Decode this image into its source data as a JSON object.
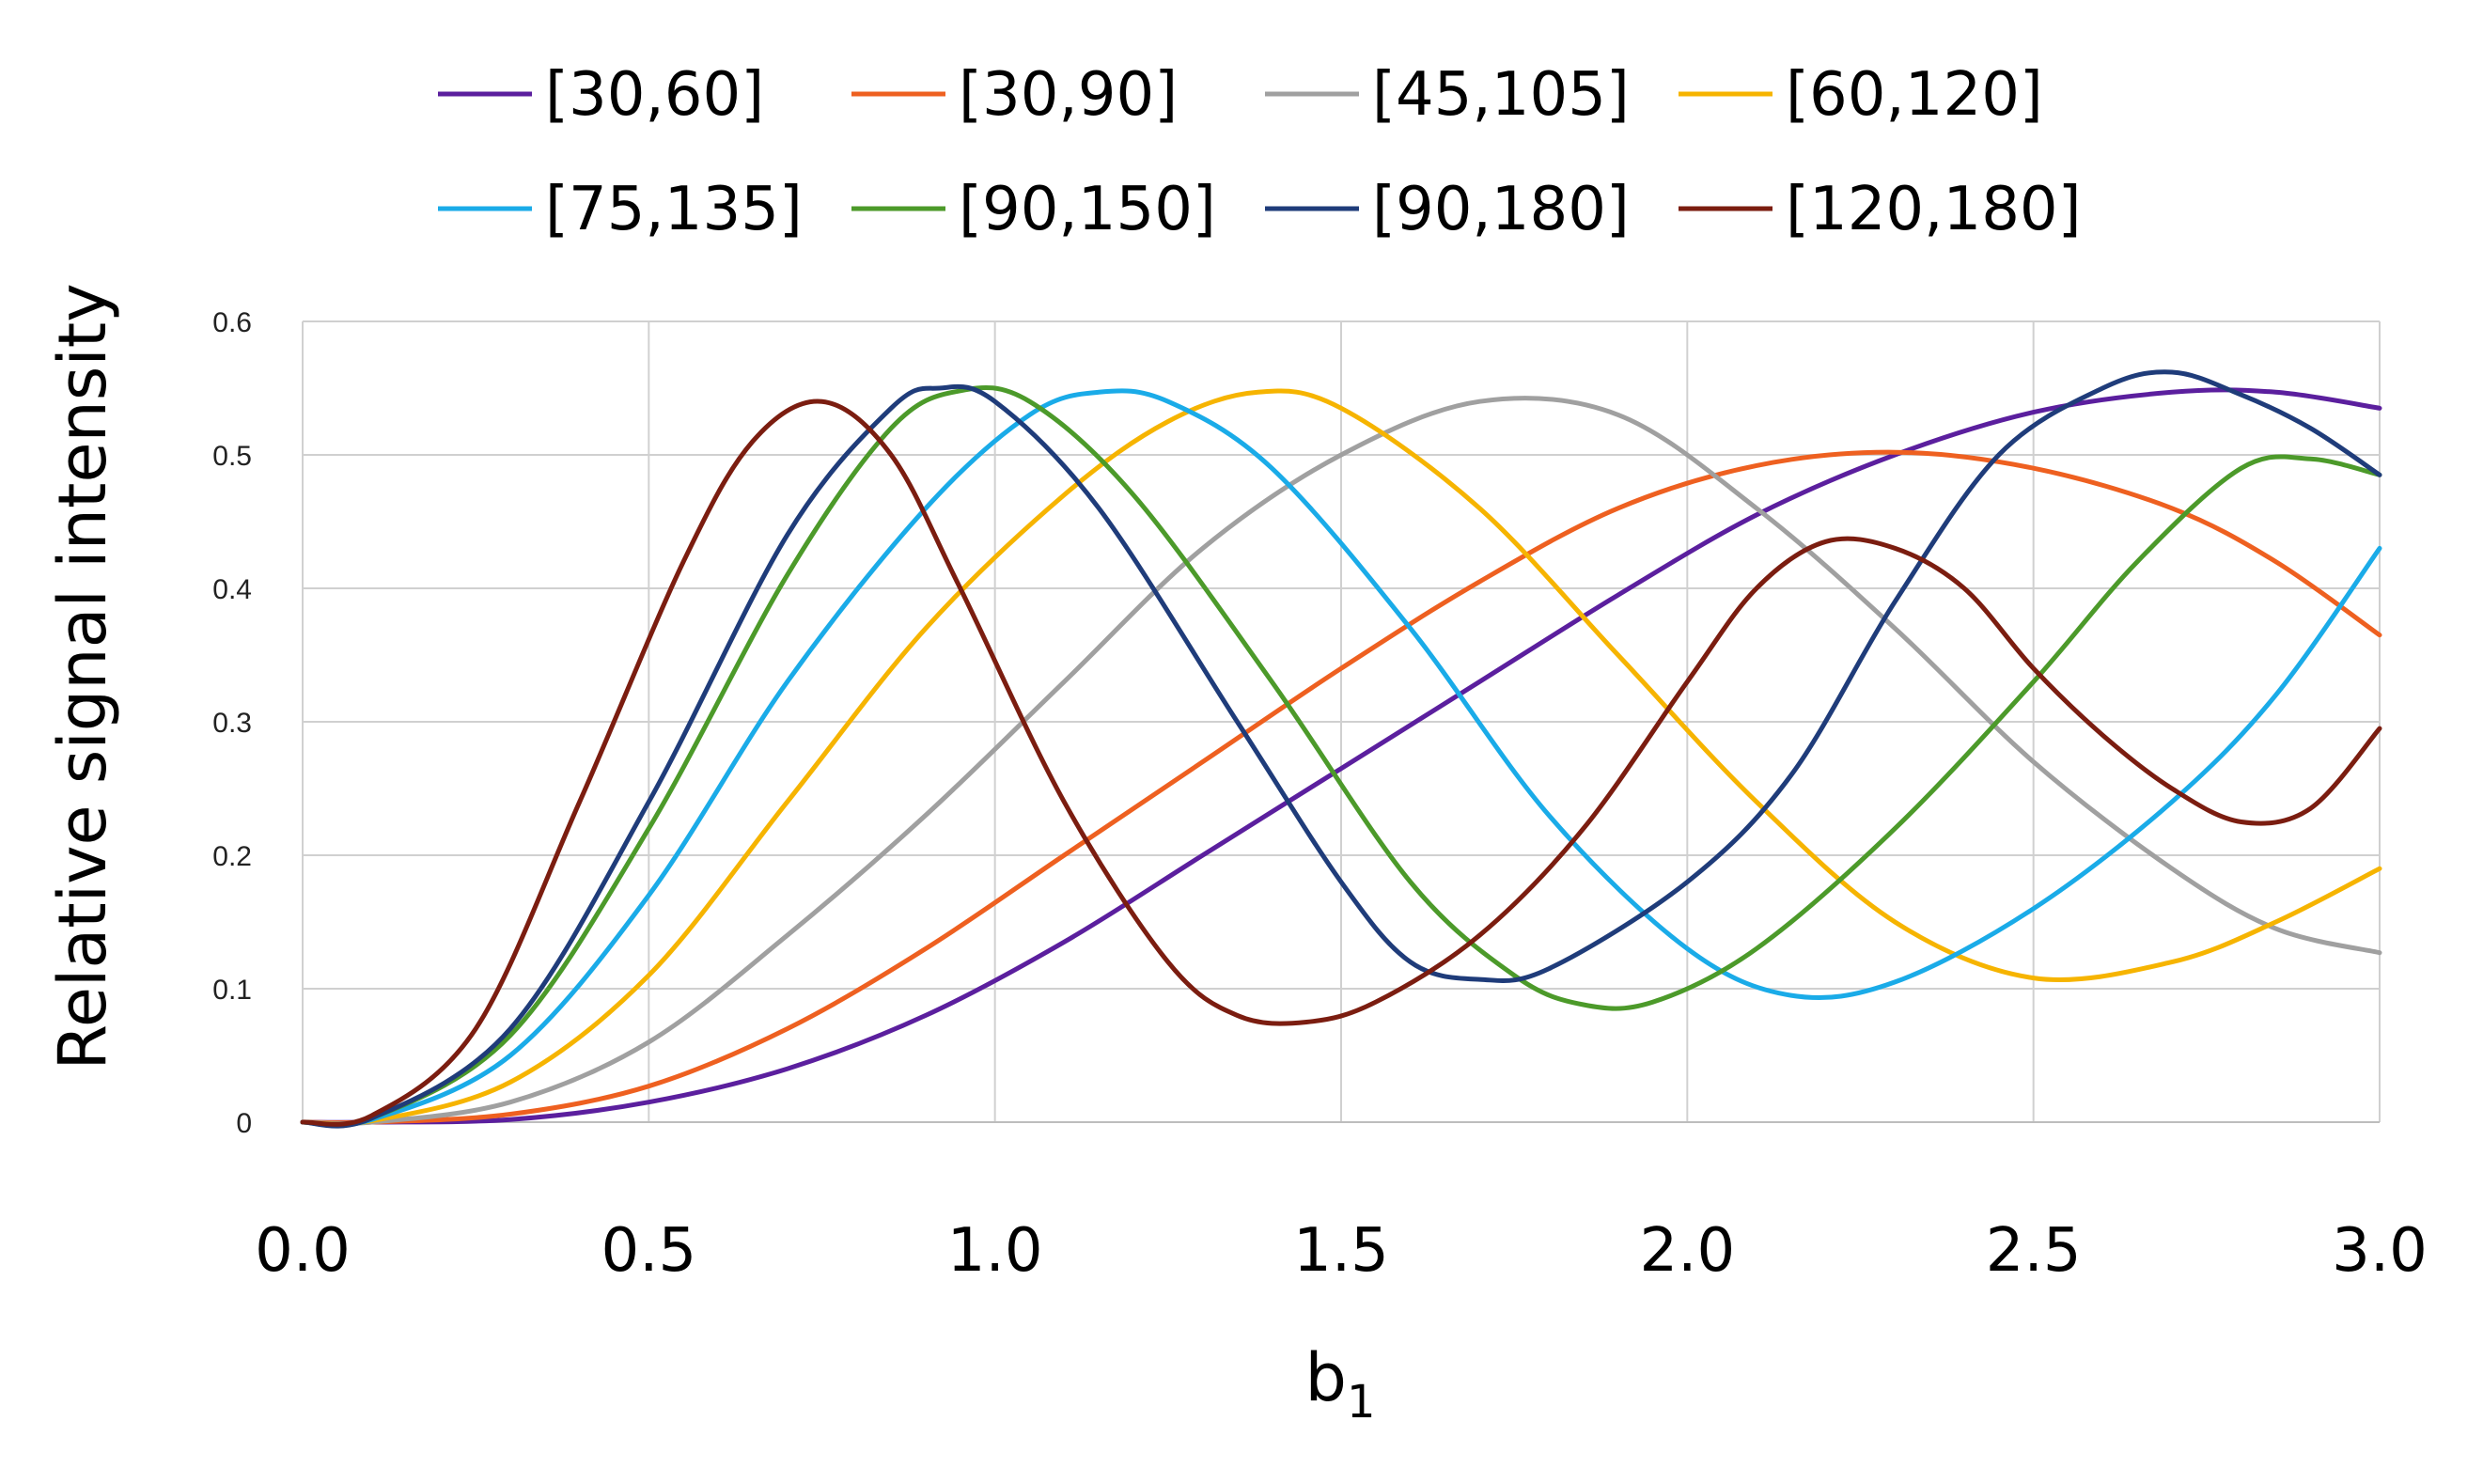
{
  "chart_data": {
    "type": "line",
    "xlabel": "b",
    "xlabel_subscript": "1",
    "ylabel": "Relative signal intensity",
    "xlim": [
      0,
      3
    ],
    "ylim": [
      0,
      0.6
    ],
    "x_ticks": [
      "0.0",
      "0.5",
      "1.0",
      "1.5",
      "2.0",
      "2.5",
      "3.0"
    ],
    "y_ticks": [
      "0",
      "0.1",
      "0.2",
      "0.3",
      "0.4",
      "0.5",
      "0.6"
    ],
    "grid": true,
    "legend_position": "top",
    "series": [
      {
        "name": "[30,60]",
        "color": "#5b1f9e",
        "points": [
          [
            0,
            0
          ],
          [
            0.1,
            0
          ],
          [
            0.3,
            0.002
          ],
          [
            0.5,
            0.015
          ],
          [
            0.7,
            0.04
          ],
          [
            0.9,
            0.08
          ],
          [
            1.1,
            0.135
          ],
          [
            1.3,
            0.2
          ],
          [
            1.5,
            0.265
          ],
          [
            1.7,
            0.33
          ],
          [
            1.9,
            0.395
          ],
          [
            2.1,
            0.455
          ],
          [
            2.3,
            0.5
          ],
          [
            2.5,
            0.532
          ],
          [
            2.7,
            0.547
          ],
          [
            2.85,
            0.547
          ],
          [
            3.0,
            0.535
          ]
        ]
      },
      {
        "name": "[30,90]",
        "color": "#ee6020",
        "points": [
          [
            0,
            0
          ],
          [
            0.1,
            0
          ],
          [
            0.3,
            0.006
          ],
          [
            0.5,
            0.027
          ],
          [
            0.7,
            0.07
          ],
          [
            0.9,
            0.13
          ],
          [
            1.1,
            0.2
          ],
          [
            1.3,
            0.27
          ],
          [
            1.5,
            0.34
          ],
          [
            1.7,
            0.405
          ],
          [
            1.9,
            0.46
          ],
          [
            2.1,
            0.492
          ],
          [
            2.3,
            0.502
          ],
          [
            2.5,
            0.49
          ],
          [
            2.7,
            0.46
          ],
          [
            2.85,
            0.42
          ],
          [
            3.0,
            0.365
          ]
        ]
      },
      {
        "name": "[45,105]",
        "color": "#a0a0a0",
        "points": [
          [
            0,
            0
          ],
          [
            0.1,
            0
          ],
          [
            0.3,
            0.015
          ],
          [
            0.5,
            0.06
          ],
          [
            0.7,
            0.14
          ],
          [
            0.9,
            0.23
          ],
          [
            1.1,
            0.33
          ],
          [
            1.3,
            0.43
          ],
          [
            1.5,
            0.5
          ],
          [
            1.7,
            0.54
          ],
          [
            1.9,
            0.53
          ],
          [
            2.1,
            0.46
          ],
          [
            2.3,
            0.37
          ],
          [
            2.5,
            0.27
          ],
          [
            2.7,
            0.19
          ],
          [
            2.85,
            0.145
          ],
          [
            3.0,
            0.127
          ]
        ]
      },
      {
        "name": "[60,120]",
        "color": "#f6b400",
        "points": [
          [
            0,
            0
          ],
          [
            0.1,
            0.001
          ],
          [
            0.3,
            0.03
          ],
          [
            0.5,
            0.11
          ],
          [
            0.7,
            0.24
          ],
          [
            0.9,
            0.37
          ],
          [
            1.1,
            0.47
          ],
          [
            1.25,
            0.525
          ],
          [
            1.38,
            0.547
          ],
          [
            1.5,
            0.535
          ],
          [
            1.7,
            0.46
          ],
          [
            1.9,
            0.35
          ],
          [
            2.1,
            0.24
          ],
          [
            2.3,
            0.15
          ],
          [
            2.5,
            0.108
          ],
          [
            2.7,
            0.12
          ],
          [
            2.85,
            0.15
          ],
          [
            3.0,
            0.19
          ]
        ]
      },
      {
        "name": "[75,135]",
        "color": "#1aabe8",
        "points": [
          [
            0,
            0
          ],
          [
            0.1,
            0.002
          ],
          [
            0.3,
            0.05
          ],
          [
            0.5,
            0.17
          ],
          [
            0.7,
            0.33
          ],
          [
            0.9,
            0.46
          ],
          [
            1.05,
            0.53
          ],
          [
            1.15,
            0.547
          ],
          [
            1.25,
            0.54
          ],
          [
            1.4,
            0.49
          ],
          [
            1.6,
            0.37
          ],
          [
            1.8,
            0.23
          ],
          [
            2.0,
            0.13
          ],
          [
            2.15,
            0.095
          ],
          [
            2.3,
            0.105
          ],
          [
            2.5,
            0.16
          ],
          [
            2.7,
            0.24
          ],
          [
            2.85,
            0.32
          ],
          [
            3.0,
            0.43
          ]
        ]
      },
      {
        "name": "[90,150]",
        "color": "#4c9a2a",
        "points": [
          [
            0,
            0
          ],
          [
            0.1,
            0.003
          ],
          [
            0.3,
            0.065
          ],
          [
            0.5,
            0.22
          ],
          [
            0.7,
            0.41
          ],
          [
            0.85,
            0.52
          ],
          [
            0.95,
            0.548
          ],
          [
            1.05,
            0.54
          ],
          [
            1.2,
            0.47
          ],
          [
            1.4,
            0.33
          ],
          [
            1.6,
            0.18
          ],
          [
            1.75,
            0.11
          ],
          [
            1.85,
            0.088
          ],
          [
            1.95,
            0.09
          ],
          [
            2.1,
            0.13
          ],
          [
            2.3,
            0.22
          ],
          [
            2.5,
            0.33
          ],
          [
            2.65,
            0.42
          ],
          [
            2.8,
            0.49
          ],
          [
            2.9,
            0.497
          ],
          [
            3.0,
            0.485
          ]
        ]
      },
      {
        "name": "[90,180]",
        "color": "#1f3c7a",
        "points": [
          [
            0,
            0
          ],
          [
            0.1,
            0.003
          ],
          [
            0.3,
            0.07
          ],
          [
            0.5,
            0.24
          ],
          [
            0.7,
            0.44
          ],
          [
            0.85,
            0.535
          ],
          [
            0.92,
            0.55
          ],
          [
            1.0,
            0.54
          ],
          [
            1.15,
            0.46
          ],
          [
            1.35,
            0.3
          ],
          [
            1.5,
            0.18
          ],
          [
            1.6,
            0.12
          ],
          [
            1.7,
            0.107
          ],
          [
            1.8,
            0.115
          ],
          [
            2.0,
            0.18
          ],
          [
            2.15,
            0.26
          ],
          [
            2.3,
            0.39
          ],
          [
            2.45,
            0.5
          ],
          [
            2.6,
            0.55
          ],
          [
            2.7,
            0.562
          ],
          [
            2.8,
            0.545
          ],
          [
            2.9,
            0.52
          ],
          [
            3.0,
            0.485
          ]
        ]
      },
      {
        "name": "[120,180]",
        "color": "#7b1d10",
        "points": [
          [
            0,
            0
          ],
          [
            0.1,
            0.005
          ],
          [
            0.25,
            0.07
          ],
          [
            0.4,
            0.24
          ],
          [
            0.55,
            0.42
          ],
          [
            0.65,
            0.51
          ],
          [
            0.75,
            0.54
          ],
          [
            0.85,
            0.5
          ],
          [
            0.95,
            0.4
          ],
          [
            1.1,
            0.24
          ],
          [
            1.25,
            0.12
          ],
          [
            1.35,
            0.08
          ],
          [
            1.45,
            0.075
          ],
          [
            1.55,
            0.09
          ],
          [
            1.7,
            0.14
          ],
          [
            1.85,
            0.22
          ],
          [
            2.0,
            0.33
          ],
          [
            2.1,
            0.4
          ],
          [
            2.2,
            0.435
          ],
          [
            2.3,
            0.43
          ],
          [
            2.4,
            0.4
          ],
          [
            2.5,
            0.34
          ],
          [
            2.6,
            0.29
          ],
          [
            2.7,
            0.25
          ],
          [
            2.8,
            0.225
          ],
          [
            2.9,
            0.235
          ],
          [
            3.0,
            0.295
          ]
        ]
      }
    ]
  }
}
